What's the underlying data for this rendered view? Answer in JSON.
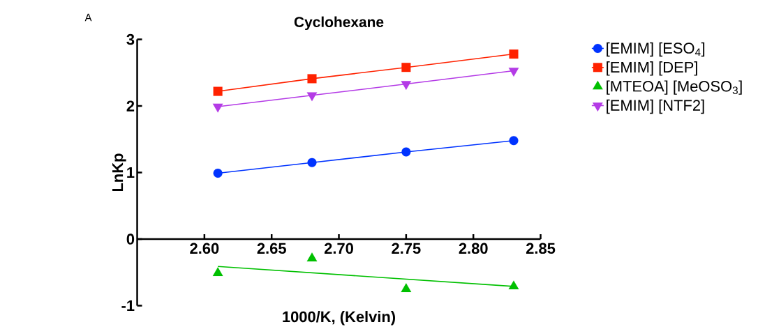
{
  "chart_data": {
    "type": "line",
    "title": "Cyclohexane",
    "xlabel": "1000/K, (Kelvin)",
    "ylabel": "LnKp",
    "annotations": [
      "A"
    ],
    "xlim": [
      2.55,
      2.85
    ],
    "xticks": [
      {
        "value": 2.6,
        "label": "2.60"
      },
      2.65,
      {
        "value": 2.7,
        "label": "2.70"
      },
      2.75,
      {
        "value": 2.8,
        "label": "2.80"
      },
      2.85
    ],
    "ylim": [
      -1,
      3
    ],
    "yticks": [
      -1,
      0,
      1,
      2,
      3
    ],
    "grid": false,
    "legend": "right",
    "series": [
      {
        "name": "[EMIM] [ESO$_{4}$]",
        "type": "line",
        "marker": "circle",
        "color": "#0033ff",
        "x": [
          2.61,
          2.68,
          2.75,
          2.83
        ],
        "values": [
          0.99,
          1.15,
          1.31,
          1.48
        ]
      },
      {
        "name": "[EMIM] [DEP]",
        "type": "line",
        "marker": "square",
        "color": "#ff2200",
        "x": [
          2.61,
          2.68,
          2.75,
          2.83
        ],
        "values": [
          2.22,
          2.41,
          2.58,
          2.78
        ]
      },
      {
        "name": "[MTEOA] [MeOSO$_{3}$]",
        "type": "scatter",
        "marker": "triangle",
        "color": "#00c000",
        "x": [
          2.61,
          2.68,
          2.75,
          2.83
        ],
        "values": [
          -0.51,
          -0.29,
          -0.75,
          -0.71
        ]
      },
      {
        "name": "[EMIM] [NTF2]",
        "marker": "triangle-down",
        "color": "#b43be6",
        "x": [
          2.61,
          2.68,
          2.75,
          2.83
        ],
        "values": [
          1.99,
          2.16,
          2.33,
          2.53
        ]
      },
      {
        "marker": "none",
        "color": "#00c000",
        "x": [
          2.61,
          2.83
        ],
        "values": [
          -0.41,
          -0.71
        ]
      }
    ]
  }
}
